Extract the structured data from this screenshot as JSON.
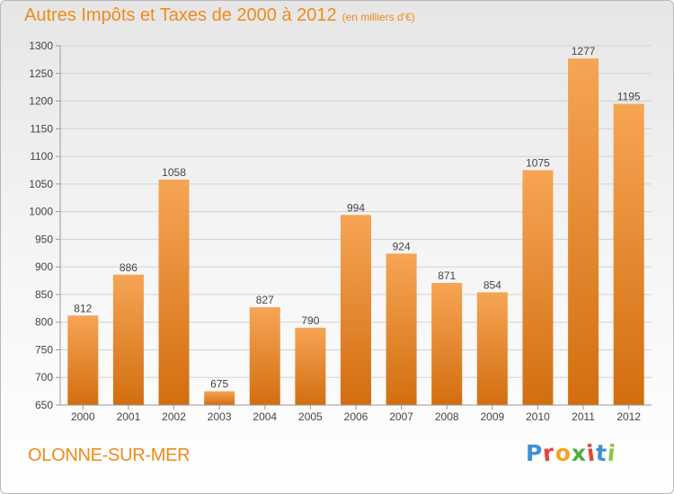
{
  "header": {
    "title": "Autres Impôts et Taxes de 2000 à 2012",
    "subtitle": "(en milliers d'€)"
  },
  "location": "OLONNE-SUR-MER",
  "brand": {
    "name": "Proxiti",
    "letter_colors": [
      "#3f8fd4",
      "#e8423c",
      "#f4a51c",
      "#4fae3d",
      "#e8423c",
      "#3f8fd4",
      "#8cc63f"
    ]
  },
  "colors": {
    "bar_top": "#f6a555",
    "bar_bottom": "#d36e10",
    "accent": "#f08a18",
    "grid": "#d2d2d2"
  },
  "chart_data": {
    "type": "bar",
    "title": "Autres Impôts et Taxes de 2000 à 2012",
    "subtitle": "(en milliers d'€)",
    "categories": [
      "2000",
      "2001",
      "2002",
      "2003",
      "2004",
      "2005",
      "2006",
      "2007",
      "2008",
      "2009",
      "2010",
      "2011",
      "2012"
    ],
    "values": [
      812,
      886,
      1058,
      675,
      827,
      790,
      994,
      924,
      871,
      854,
      1075,
      1277,
      1195
    ],
    "ylim": [
      650,
      1300
    ],
    "yticks": [
      650,
      700,
      750,
      800,
      850,
      900,
      950,
      1000,
      1050,
      1100,
      1150,
      1200,
      1250,
      1300
    ],
    "grid": true,
    "data_labels": true
  }
}
